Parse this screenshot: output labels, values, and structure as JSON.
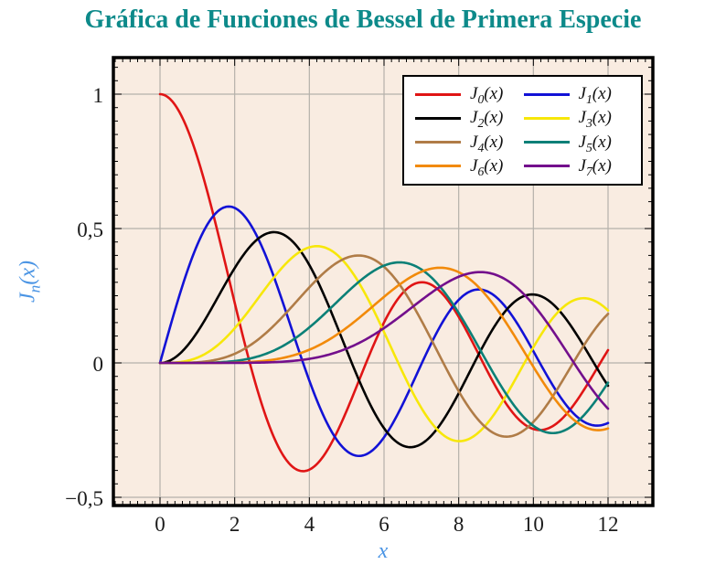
{
  "title": {
    "text": "Gráfica de Funciones de Bessel de Primera Especie"
  },
  "colors": {
    "title": "#0d8a8a",
    "axis_label": "#4a94e4",
    "tick_label": "#1b1b1b",
    "plot_bg": "#f9ece1",
    "grid": "#b5b1ab",
    "frame": "#000000",
    "tick_mark": "#000000",
    "legend_bg": "#ffffff",
    "legend_border": "#000000"
  },
  "axes": {
    "xlabel": "x",
    "ylabel": {
      "base": "J",
      "sub": "n",
      "rest": "(x)"
    },
    "x_tick_labels": [
      "0",
      "2",
      "4",
      "6",
      "8",
      "10",
      "12"
    ],
    "y_tick_labels": [
      "1",
      "0,5",
      "0",
      "−0,5"
    ]
  },
  "chart_data": {
    "type": "line",
    "title": "Gráfica de Funciones de Bessel de Primera Especie",
    "xlabel": "x",
    "ylabel": "J_n(x)",
    "function_family": "Bessel functions of the first kind J_n(x)",
    "xlim": [
      -1.25,
      13.2
    ],
    "ylim": [
      -0.53,
      1.14
    ],
    "x_range_plotted": [
      0,
      12
    ],
    "x_ticks": [
      0,
      2,
      4,
      6,
      8,
      10,
      12
    ],
    "y_ticks": [
      1,
      0.5,
      0,
      -0.5
    ],
    "minor_tick_step_x": 0.2,
    "minor_tick_step_y": 0.05,
    "grid": "major",
    "legend_position": "top-right",
    "legend_columns": 2,
    "samples_x": [
      0,
      1,
      2,
      3,
      4,
      5,
      6,
      7,
      8,
      9,
      10,
      11,
      12
    ],
    "series": [
      {
        "name": "J_0(x)",
        "base": "J",
        "sub": "0",
        "rest": "(x)",
        "order": 0,
        "color": "#e01515",
        "samples_y": [
          1,
          0.7652,
          0.2239,
          -0.2601,
          -0.3971,
          -0.1776,
          0.1506,
          0.3001,
          0.1717,
          -0.0903,
          -0.2459,
          -0.1712,
          0.0477
        ]
      },
      {
        "name": "J_1(x)",
        "base": "J",
        "sub": "1",
        "rest": "(x)",
        "order": 1,
        "color": "#1212d6",
        "samples_y": [
          0,
          0.4401,
          0.5767,
          0.3391,
          -0.066,
          -0.3276,
          -0.2767,
          -0.0047,
          0.2346,
          0.2453,
          0.0435,
          -0.1768,
          -0.2234
        ]
      },
      {
        "name": "J_2(x)",
        "base": "J",
        "sub": "2",
        "rest": "(x)",
        "order": 2,
        "color": "#000000",
        "samples_y": [
          0,
          0.1149,
          0.3528,
          0.4861,
          0.3641,
          0.0466,
          -0.2429,
          -0.3014,
          -0.113,
          0.1448,
          0.2546,
          0.139,
          -0.0849
        ]
      },
      {
        "name": "J_3(x)",
        "base": "J",
        "sub": "3",
        "rest": "(x)",
        "order": 3,
        "color": "#f7e70a",
        "samples_y": [
          0,
          0.0196,
          0.1289,
          0.3091,
          0.4302,
          0.3648,
          0.1148,
          -0.1676,
          -0.2911,
          -0.1809,
          0.0584,
          0.2273,
          0.1951
        ]
      },
      {
        "name": "J_4(x)",
        "base": "J",
        "sub": "4",
        "rest": "(x)",
        "order": 4,
        "color": "#b07c47",
        "samples_y": [
          0,
          0.0025,
          0.034,
          0.132,
          0.2811,
          0.3912,
          0.3576,
          0.1578,
          -0.1054,
          -0.2655,
          -0.2196,
          -0.015,
          0.1825
        ]
      },
      {
        "name": "J_5(x)",
        "base": "J",
        "sub": "5",
        "rest": "(x)",
        "order": 5,
        "color": "#0b8077",
        "samples_y": [
          0,
          0.0002,
          0.007,
          0.043,
          0.1321,
          0.2611,
          0.3621,
          0.3479,
          0.1858,
          -0.055,
          -0.2341,
          -0.2383,
          -0.0735
        ]
      },
      {
        "name": "J_6(x)",
        "base": "J",
        "sub": "6",
        "rest": "(x)",
        "order": 6,
        "color": "#f28a0a",
        "samples_y": [
          0,
          0,
          0.0012,
          0.0114,
          0.0491,
          0.131,
          0.2458,
          0.3392,
          0.3376,
          0.2043,
          -0.0145,
          -0.2016,
          -0.2437
        ]
      },
      {
        "name": "J_7(x)",
        "base": "J",
        "sub": "7",
        "rest": "(x)",
        "order": 7,
        "color": "#730f8c",
        "samples_y": [
          0,
          0,
          0.0002,
          0.0025,
          0.0152,
          0.0534,
          0.1296,
          0.2336,
          0.3206,
          0.3275,
          0.2167,
          0.0184,
          -0.1703
        ]
      }
    ]
  }
}
